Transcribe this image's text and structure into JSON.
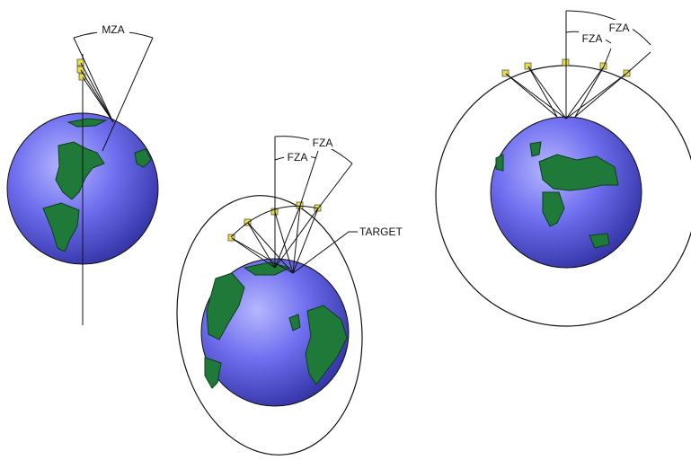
{
  "labels": {
    "mza": "MZA",
    "fza_outer_middle": "FZA",
    "fza_inner_middle": "FZA",
    "target": "TARGET",
    "fza_outer_right": "FZA",
    "fza_inner_right": "FZA"
  },
  "colors": {
    "ocean": "#6f6ff0",
    "ocean_light": "#b7b7ff",
    "ocean_dark": "#2a2a9a",
    "land": "#1f7a3a",
    "land_edge": "#0d3d1a",
    "satellite": "#e8e040",
    "line": "#111111"
  },
  "icons": {
    "satellite": "satellite-icon",
    "earth": "earth-globe-icon"
  }
}
